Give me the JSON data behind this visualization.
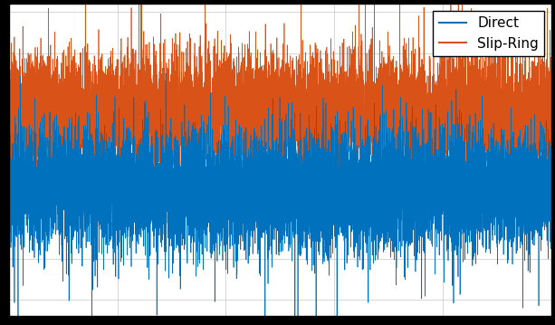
{
  "title": "",
  "direct_color": "#0072BD",
  "slipring_color": "#D95319",
  "background_color": "#ffffff",
  "outer_background": "#000000",
  "legend_labels": [
    "Direct",
    "Slip-Ring"
  ],
  "direct_std": 0.18,
  "direct_mean": -0.08,
  "slipring_std": 0.18,
  "slipring_mean": 0.38,
  "n_samples": 10000,
  "seed_direct": 42,
  "seed_slipring": 123,
  "linewidth": 0.5,
  "legend_fontsize": 11,
  "grid_color": "#cccccc",
  "grid_alpha": 0.8,
  "xlim_min": 0,
  "xlim_max": 10000,
  "ylim_min": -0.85,
  "ylim_max": 1.05,
  "n_xticks": 5,
  "n_yticks": 5
}
